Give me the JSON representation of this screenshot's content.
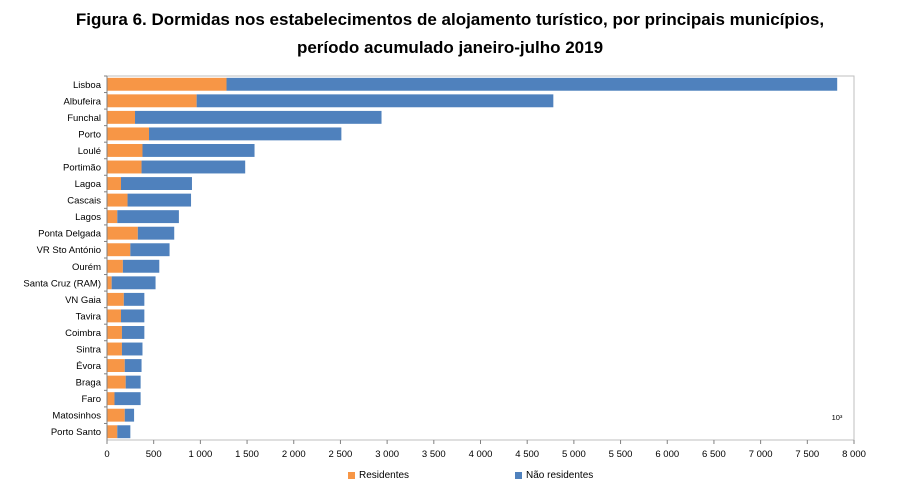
{
  "title_line1": "Figura 6. Dormidas nos estabelecimentos de alojamento turístico, por principais municípios,",
  "title_line2": "período acumulado janeiro-julho 2019",
  "colors": {
    "residentes": "#F79646",
    "nao_residentes": "#4F81BD"
  },
  "chart_data": {
    "type": "bar",
    "orientation": "horizontal",
    "stacked": true,
    "title": "Figura 6. Dormidas nos estabelecimentos de alojamento turístico, por principais municípios, período acumulado janeiro-julho 2019",
    "unit_label": "10³",
    "xlim": [
      0,
      8000
    ],
    "xticks": [
      0,
      500,
      1000,
      1500,
      2000,
      2500,
      3000,
      3500,
      4000,
      4500,
      5000,
      5500,
      6000,
      6500,
      7000,
      7500,
      8000
    ],
    "xtick_labels": [
      "0",
      "500",
      "1 000",
      "1 500",
      "2 000",
      "2 500",
      "3 000",
      "3 500",
      "4 000",
      "4 500",
      "5 000",
      "5 500",
      "6 000",
      "6 500",
      "7 000",
      "7 500",
      "8 000"
    ],
    "categories": [
      "Lisboa",
      "Albufeira",
      "Funchal",
      "Porto",
      "Loulé",
      "Portimão",
      "Lagoa",
      "Cascais",
      "Lagos",
      "Ponta Delgada",
      "VR Sto António",
      "Ourém",
      "Santa Cruz (RAM)",
      "VN Gaia",
      "Tavira",
      "Coimbra",
      "Sintra",
      "Évora",
      "Braga",
      "Faro",
      "Matosinhos",
      "Porto Santo"
    ],
    "series": [
      {
        "name": "Residentes",
        "values": [
          1280,
          960,
          300,
          450,
          380,
          370,
          150,
          220,
          110,
          330,
          250,
          170,
          50,
          180,
          150,
          160,
          160,
          190,
          200,
          80,
          190,
          110
        ]
      },
      {
        "name": "Não residentes",
        "values": [
          6540,
          3820,
          2640,
          2060,
          1200,
          1110,
          760,
          680,
          660,
          390,
          420,
          390,
          470,
          220,
          250,
          240,
          220,
          180,
          160,
          280,
          100,
          140
        ]
      }
    ],
    "grid": false,
    "legend": "bottom"
  }
}
